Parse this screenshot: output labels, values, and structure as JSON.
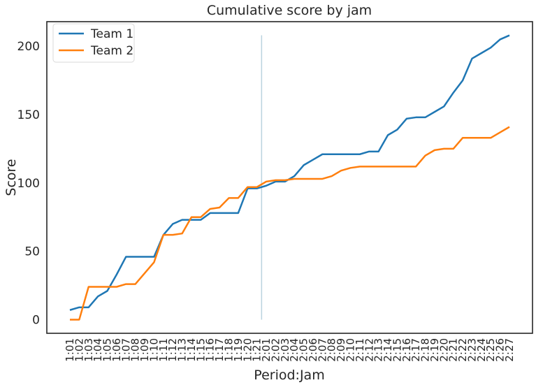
{
  "chart_data": {
    "type": "line",
    "title": "Cumulative score by jam",
    "xlabel": "Period:Jam",
    "ylabel": "Score",
    "ylim": [
      -10,
      218
    ],
    "yticks": [
      0,
      50,
      100,
      150,
      200
    ],
    "grid": false,
    "legend_position": "top-left",
    "categories": [
      "1:01",
      "1:02",
      "1:03",
      "1:04",
      "1:05",
      "1:06",
      "1:07",
      "1:08",
      "1:09",
      "1:10",
      "1:11",
      "1:12",
      "1:13",
      "1:14",
      "1:15",
      "1:16",
      "1:17",
      "1:18",
      "1:19",
      "1:20",
      "1:21",
      "2:01",
      "2:02",
      "2:03",
      "2:04",
      "2:05",
      "2:06",
      "2:07",
      "2:08",
      "2:09",
      "2:10",
      "2:11",
      "2:12",
      "2:13",
      "2:14",
      "2:15",
      "2:16",
      "2:17",
      "2:18",
      "2:19",
      "2:20",
      "2:21",
      "2:22",
      "2:23",
      "2:24",
      "2:25",
      "2:26",
      "2:27"
    ],
    "period_divider_at": "2:01",
    "series": [
      {
        "name": "Team 1",
        "color": "#1f77b4",
        "values": [
          7,
          9,
          9,
          17,
          21,
          33,
          46,
          46,
          46,
          46,
          62,
          70,
          73,
          73,
          73,
          78,
          78,
          78,
          78,
          96,
          96,
          98,
          101,
          101,
          105,
          113,
          117,
          121,
          121,
          121,
          121,
          121,
          123,
          123,
          135,
          139,
          147,
          148,
          148,
          152,
          156,
          166,
          175,
          191,
          195,
          199,
          205,
          208
        ]
      },
      {
        "name": "Team 2",
        "color": "#ff7f0e",
        "values": [
          0,
          0,
          24,
          24,
          24,
          24,
          26,
          26,
          34,
          42,
          62,
          62,
          63,
          75,
          75,
          81,
          82,
          89,
          89,
          97,
          97,
          101,
          102,
          102,
          103,
          103,
          103,
          103,
          105,
          109,
          111,
          112,
          112,
          112,
          112,
          112,
          112,
          112,
          120,
          124,
          125,
          125,
          133,
          133,
          133,
          133,
          137,
          141
        ]
      }
    ]
  }
}
